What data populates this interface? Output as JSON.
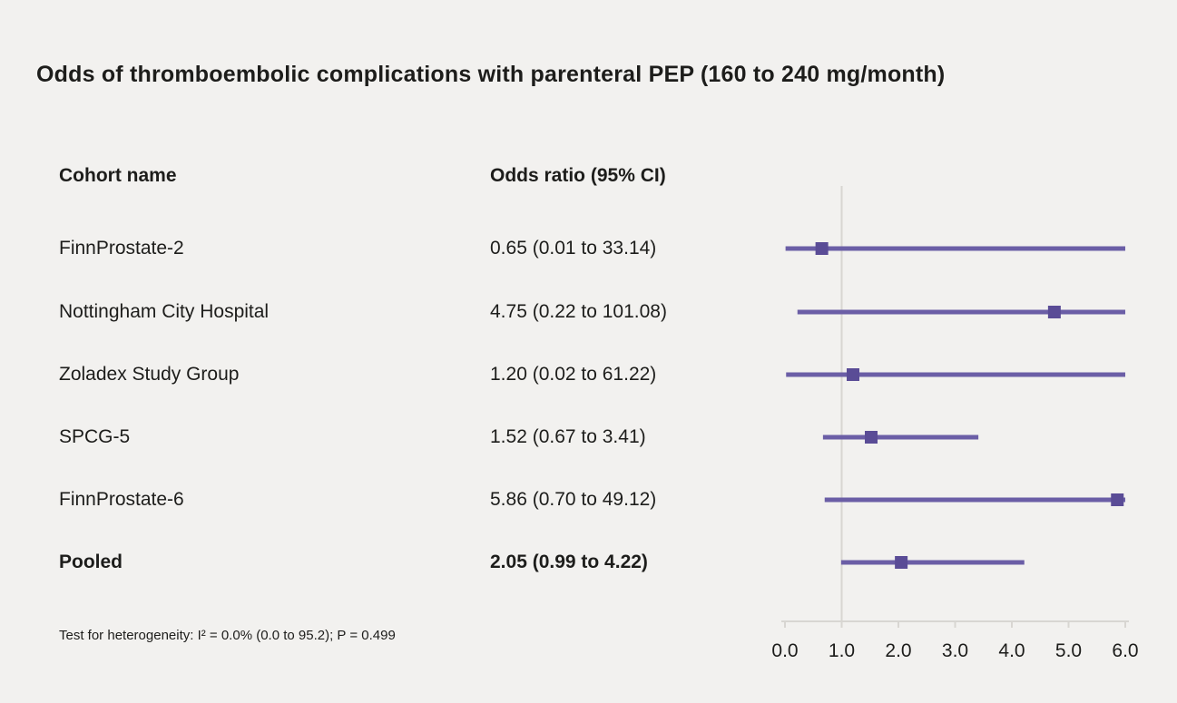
{
  "title": "Odds of thromboembolic complications with parenteral PEP (160 to 240 mg/month)",
  "columns": {
    "cohort": "Cohort name",
    "odds_ratio": "Odds ratio (95% CI)"
  },
  "footnote": "Test for heterogeneity: I² = 0.0% (0.0 to 95.2); P = 0.499",
  "colors": {
    "background": "#f2f1ef",
    "accent_line": "#6b5ea6",
    "accent_marker": "#5a4c96",
    "axis": "#d8d6d2",
    "text": "#1d1d1b"
  },
  "chart_data": {
    "type": "forest",
    "title": "Odds of thromboembolic complications with parenteral PEP (160 to 240 mg/month)",
    "xlabel": "",
    "ylabel": "",
    "xlim": [
      0,
      6
    ],
    "x_ticks": [
      {
        "label": "0.0",
        "value": 0
      },
      {
        "label": "1.0",
        "value": 1
      },
      {
        "label": "2.0",
        "value": 2
      },
      {
        "label": "3.0",
        "value": 3
      },
      {
        "label": "4.0",
        "value": 4
      },
      {
        "label": "5.0",
        "value": 5
      },
      {
        "label": "6.0",
        "value": 6
      }
    ],
    "reference_line": 1.0,
    "grid": false,
    "rows": [
      {
        "cohort": "FinnProstate-2",
        "or_label": "0.65 (0.01 to 33.14)",
        "or": 0.65,
        "ci_low": 0.01,
        "ci_high": 33.14,
        "bold": false
      },
      {
        "cohort": "Nottingham City Hospital",
        "or_label": "4.75 (0.22 to 101.08)",
        "or": 4.75,
        "ci_low": 0.22,
        "ci_high": 101.08,
        "bold": false
      },
      {
        "cohort": "Zoladex Study Group",
        "or_label": "1.20 (0.02 to 61.22)",
        "or": 1.2,
        "ci_low": 0.02,
        "ci_high": 61.22,
        "bold": false
      },
      {
        "cohort": "SPCG-5",
        "or_label": "1.52 (0.67 to 3.41)",
        "or": 1.52,
        "ci_low": 0.67,
        "ci_high": 3.41,
        "bold": false
      },
      {
        "cohort": "FinnProstate-6",
        "or_label": "5.86 (0.70 to 49.12)",
        "or": 5.86,
        "ci_low": 0.7,
        "ci_high": 49.12,
        "bold": false
      },
      {
        "cohort": "Pooled",
        "or_label": "2.05 (0.99 to 4.22)",
        "or": 2.05,
        "ci_low": 0.99,
        "ci_high": 4.22,
        "bold": true
      }
    ]
  }
}
